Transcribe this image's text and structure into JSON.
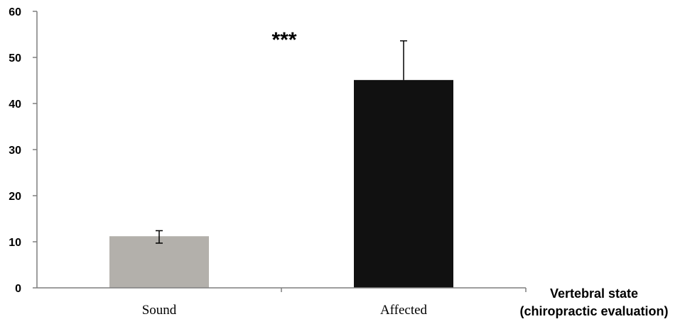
{
  "chart_data": {
    "type": "bar",
    "categories": [
      "Sound",
      "Affected"
    ],
    "values": [
      11.2,
      45.1
    ],
    "error_up": [
      1.2,
      8.5
    ],
    "error_down": [
      1.5,
      0
    ],
    "colors": [
      "#b3b0ab",
      "#111111"
    ],
    "ylim": [
      0,
      60
    ],
    "yticks": [
      "0",
      "10",
      "20",
      "30",
      "40",
      "50",
      "60"
    ],
    "xlabel_line1": "Vertebral state",
    "xlabel_line2": "(chiropractic evaluation)",
    "annotation": "***",
    "grid": false
  }
}
